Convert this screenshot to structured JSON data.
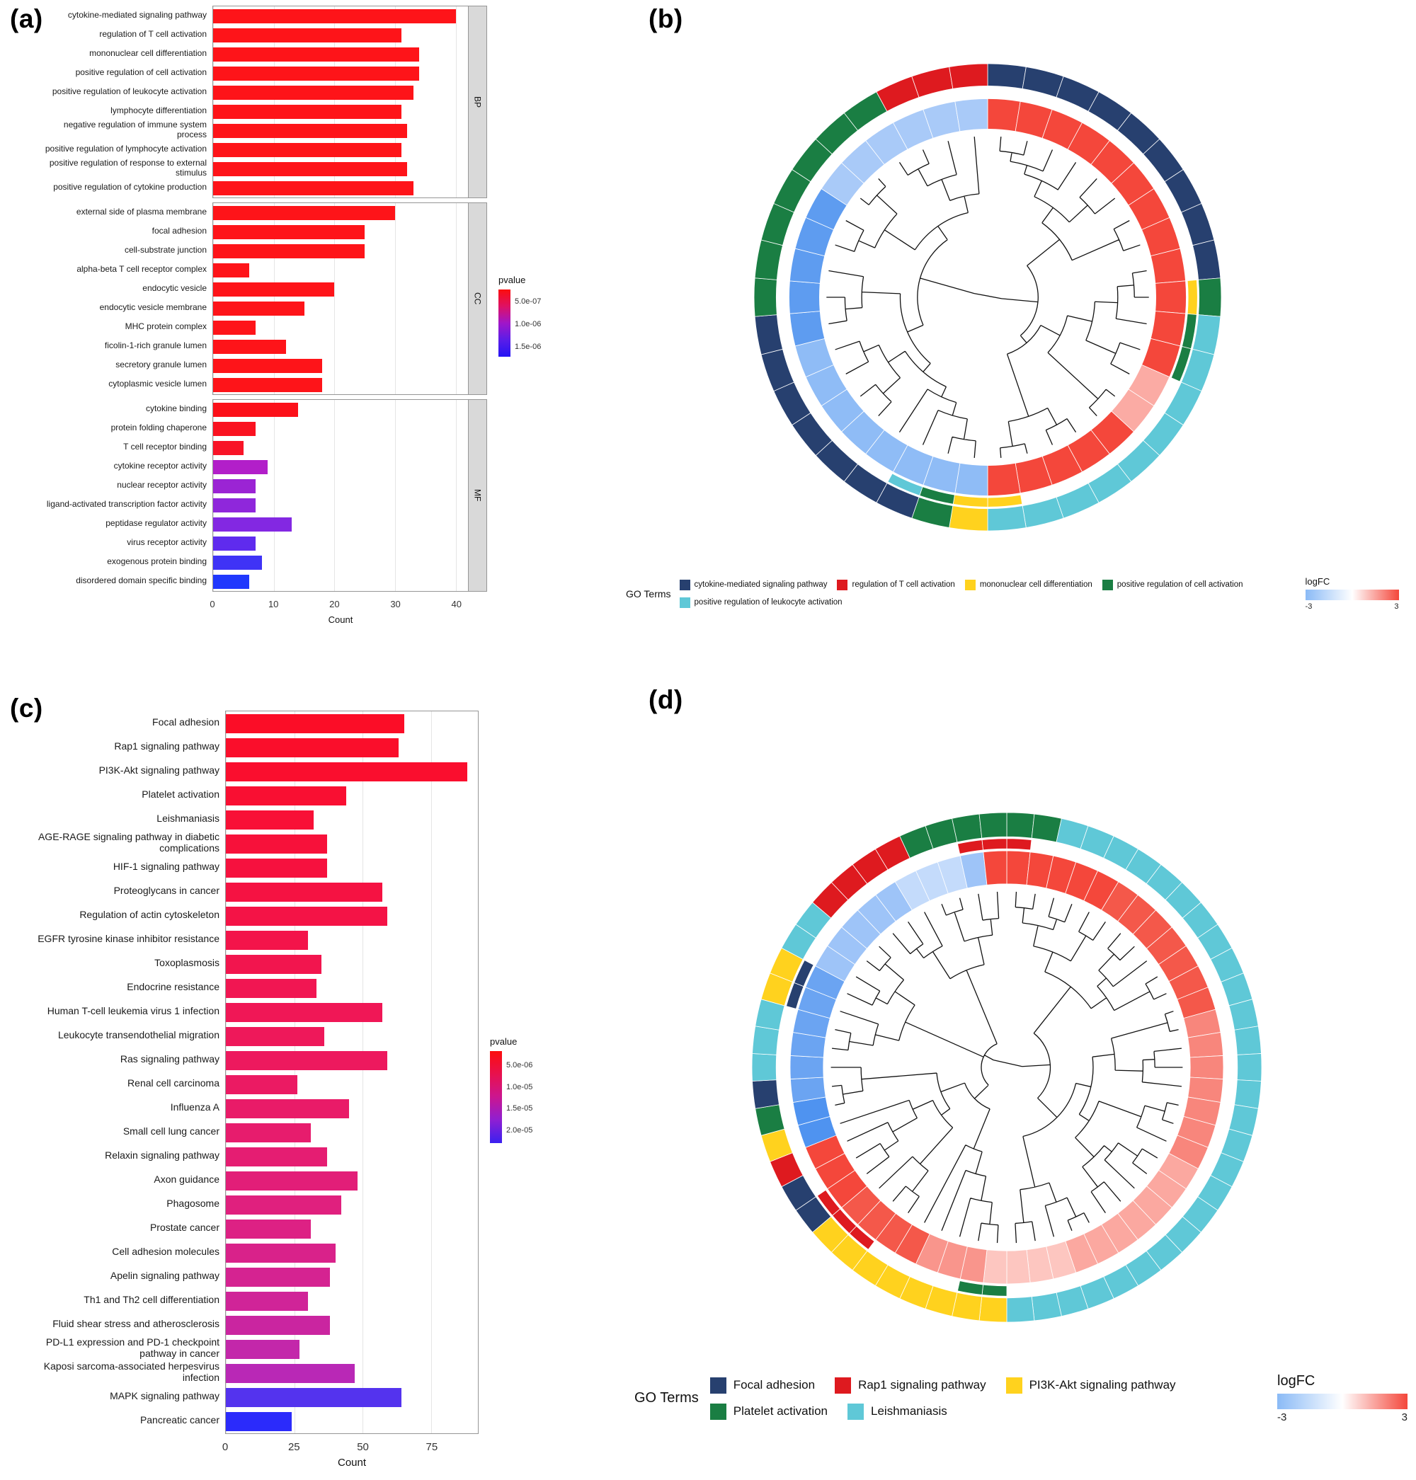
{
  "figure": {
    "panel_a_label": "(a)",
    "panel_b_label": "(b)",
    "panel_c_label": "(c)",
    "panel_d_label": "(d)"
  },
  "chart_data": [
    {
      "id": "a",
      "type": "bar",
      "orientation": "horizontal",
      "xlabel": "Count",
      "x_ticks": [
        0,
        10,
        20,
        30,
        40
      ],
      "xmax": 42,
      "legend": {
        "title": "pvalue",
        "gradient": [
          "#FC0D0D",
          "#DE1164",
          "#A016C8",
          "#5A1DE8",
          "#2414F4"
        ],
        "ticks": [
          {
            "label": "5.0e-07",
            "pos": 0.18
          },
          {
            "label": "1.0e-06",
            "pos": 0.52
          },
          {
            "label": "1.5e-06",
            "pos": 0.86
          }
        ]
      },
      "facets": [
        {
          "name": "BP",
          "bars": [
            {
              "label": "cytokine-mediated signaling pathway",
              "value": 40,
              "color": "#FE1419"
            },
            {
              "label": "regulation of T cell activation",
              "value": 31,
              "color": "#FE1419"
            },
            {
              "label": "mononuclear cell differentiation",
              "value": 34,
              "color": "#FE1419"
            },
            {
              "label": "positive regulation of cell activation",
              "value": 34,
              "color": "#FE1419"
            },
            {
              "label": "positive regulation of leukocyte activation",
              "value": 33,
              "color": "#FE1419"
            },
            {
              "label": "lymphocyte differentiation",
              "value": 31,
              "color": "#FE1419"
            },
            {
              "label": "negative regulation of immune system process",
              "value": 32,
              "color": "#FE1419"
            },
            {
              "label": "positive regulation of lymphocyte activation",
              "value": 31,
              "color": "#FE1419"
            },
            {
              "label": "positive regulation of response to external stimulus",
              "value": 32,
              "color": "#FE1419"
            },
            {
              "label": "positive regulation of cytokine production",
              "value": 33,
              "color": "#FE1419"
            }
          ]
        },
        {
          "name": "CC",
          "bars": [
            {
              "label": "external side of plasma membrane",
              "value": 30,
              "color": "#FE1419"
            },
            {
              "label": "focal adhesion",
              "value": 25,
              "color": "#FE1419"
            },
            {
              "label": "cell-substrate junction",
              "value": 25,
              "color": "#FE1419"
            },
            {
              "label": "alpha-beta T cell receptor complex",
              "value": 6,
              "color": "#FE1419"
            },
            {
              "label": "endocytic vesicle",
              "value": 20,
              "color": "#FE1419"
            },
            {
              "label": "endocytic vesicle membrane",
              "value": 15,
              "color": "#FE1419"
            },
            {
              "label": "MHC protein complex",
              "value": 7,
              "color": "#FE1419"
            },
            {
              "label": "ficolin-1-rich granule lumen",
              "value": 12,
              "color": "#FE1419"
            },
            {
              "label": "secretory granule lumen",
              "value": 18,
              "color": "#FE1419"
            },
            {
              "label": "cytoplasmic vesicle lumen",
              "value": 18,
              "color": "#FE1419"
            }
          ]
        },
        {
          "name": "MF",
          "bars": [
            {
              "label": "cytokine binding",
              "value": 14,
              "color": "#FC1019"
            },
            {
              "label": "protein folding chaperone",
              "value": 7,
              "color": "#FA1220"
            },
            {
              "label": "T cell receptor binding",
              "value": 5,
              "color": "#F81427"
            },
            {
              "label": "cytokine receptor activity",
              "value": 9,
              "color": "#B21FC9"
            },
            {
              "label": "nuclear receptor activity",
              "value": 7,
              "color": "#9B24D4"
            },
            {
              "label": "ligand-activated transcription factor activity",
              "value": 7,
              "color": "#8F27DB"
            },
            {
              "label": "peptidase regulator activity",
              "value": 13,
              "color": "#8328E2"
            },
            {
              "label": "virus receptor activity",
              "value": 7,
              "color": "#5F2BEE"
            },
            {
              "label": "exogenous protein binding",
              "value": 8,
              "color": "#3F33F6"
            },
            {
              "label": "disordered domain specific binding",
              "value": 6,
              "color": "#2038FD"
            }
          ]
        }
      ]
    },
    {
      "id": "b",
      "type": "circular",
      "size": 730,
      "radius": 330,
      "n_genes": 38,
      "rings": {
        "outer": {
          "r0": 0.905,
          "r1": 1.0
        },
        "mid": {
          "r0": 0.858,
          "r1": 0.898
        },
        "logfc": {
          "r0": 0.72,
          "r1": 0.85
        },
        "dendro": 0.69
      },
      "outer_segments": [
        {
          "color": "#27406F",
          "a0": 0,
          "a1": 84
        },
        {
          "color": "#1A7E43",
          "a0": 84,
          "a1": 97
        },
        {
          "color": "#5FC8D7",
          "a0": 97,
          "a1": 177
        },
        {
          "color": "#FFD21E",
          "a0": 177,
          "a1": 186
        },
        {
          "color": "#1A7E43",
          "a0": 186,
          "a1": 197
        },
        {
          "color": "#27406F",
          "a0": 197,
          "a1": 263
        },
        {
          "color": "#1A7E43",
          "a0": 263,
          "a1": 329
        },
        {
          "color": "#DE1A1F",
          "a0": 329,
          "a1": 360
        }
      ],
      "mid_segments": [
        {
          "color": "#FFD21E",
          "a0": 82,
          "a1": 97
        },
        {
          "color": "#1A7E43",
          "a0": 97,
          "a1": 110
        },
        {
          "color": "#FFD21E",
          "a0": 171,
          "a1": 186
        },
        {
          "color": "#1A7E43",
          "a0": 186,
          "a1": 199
        },
        {
          "color": "#5FC8D7",
          "a0": 199,
          "a1": 212
        }
      ],
      "logfc_segments": [
        {
          "color": "#F4473B",
          "a0": 0,
          "a1": 117
        },
        {
          "color": "#FBABA4",
          "a0": 117,
          "a1": 131
        },
        {
          "color": "#F4473B",
          "a0": 131,
          "a1": 180
        },
        {
          "color": "#8FBCF6",
          "a0": 180,
          "a1": 252
        },
        {
          "color": "#5E9CF0",
          "a0": 252,
          "a1": 301
        },
        {
          "color": "#A9CAF8",
          "a0": 301,
          "a1": 360
        }
      ],
      "legend": {
        "title": "GO Terms",
        "items": [
          {
            "label": "cytokine-mediated signaling pathway",
            "color": "#27406F"
          },
          {
            "label": "regulation of T cell activation",
            "color": "#DE1A1F"
          },
          {
            "label": "mononuclear cell differentiation",
            "color": "#FFD21E"
          },
          {
            "label": "positive regulation of cell activation",
            "color": "#1A7E43"
          },
          {
            "label": "positive regulation of leukocyte activation",
            "color": "#5FC8D7"
          }
        ]
      },
      "logfc_legend": {
        "title": "logFC",
        "min": "-3",
        "max": "3",
        "colors": [
          "#8ABAF6",
          "#FFFFFF",
          "#F4473B"
        ]
      }
    },
    {
      "id": "c",
      "type": "bar",
      "orientation": "horizontal",
      "xlabel": "Count",
      "x_ticks": [
        0,
        25,
        50,
        75
      ],
      "xmax": 92,
      "legend": {
        "title": "pvalue",
        "gradient": [
          "#FC0D0D",
          "#E8114E",
          "#CB1690",
          "#8E1FD2",
          "#3A20F0"
        ],
        "ticks": [
          {
            "label": "5.0e-06",
            "pos": 0.15
          },
          {
            "label": "1.0e-05",
            "pos": 0.39
          },
          {
            "label": "1.5e-05",
            "pos": 0.62
          },
          {
            "label": "2.0e-05",
            "pos": 0.86
          }
        ]
      },
      "facets": [
        {
          "name": "",
          "bars": [
            {
              "label": "Focal adhesion",
              "value": 65,
              "color": "#FB0D27"
            },
            {
              "label": "Rap1 signaling pathway",
              "value": 63,
              "color": "#FA0E2B"
            },
            {
              "label": "PI3K-Akt signaling pathway",
              "value": 88,
              "color": "#FA0E2E"
            },
            {
              "label": "Platelet activation",
              "value": 44,
              "color": "#F90F32"
            },
            {
              "label": "Leishmaniasis",
              "value": 32,
              "color": "#F81036"
            },
            {
              "label": "AGE-RAGE signaling pathway in diabetic complications",
              "value": 37,
              "color": "#F7113A"
            },
            {
              "label": "HIF-1 signaling pathway",
              "value": 37,
              "color": "#F6113E"
            },
            {
              "label": "Proteoglycans in cancer",
              "value": 57,
              "color": "#F51242"
            },
            {
              "label": "Regulation of actin cytoskeleton",
              "value": 59,
              "color": "#F41346"
            },
            {
              "label": "EGFR tyrosine kinase inhibitor resistance",
              "value": 30,
              "color": "#F3144A"
            },
            {
              "label": "Toxoplasmosis",
              "value": 35,
              "color": "#F2154E"
            },
            {
              "label": "Endocrine resistance",
              "value": 33,
              "color": "#F11652"
            },
            {
              "label": "Human T-cell leukemia virus 1 infection",
              "value": 57,
              "color": "#F01756"
            },
            {
              "label": "Leukocyte transendothelial migration",
              "value": 36,
              "color": "#EE185A"
            },
            {
              "label": "Ras signaling pathway",
              "value": 59,
              "color": "#ED195E"
            },
            {
              "label": "Renal cell carcinoma",
              "value": 26,
              "color": "#EB1A63"
            },
            {
              "label": "Influenza A",
              "value": 45,
              "color": "#E91B68"
            },
            {
              "label": "Small cell lung cancer",
              "value": 31,
              "color": "#E71C6D"
            },
            {
              "label": "Relaxin signaling pathway",
              "value": 37,
              "color": "#E51D72"
            },
            {
              "label": "Axon guidance",
              "value": 48,
              "color": "#E21E78"
            },
            {
              "label": "Phagosome",
              "value": 42,
              "color": "#E0207E"
            },
            {
              "label": "Prostate cancer",
              "value": 31,
              "color": "#DD2184"
            },
            {
              "label": "Cell adhesion molecules",
              "value": 40,
              "color": "#D9228A"
            },
            {
              "label": "Apelin signaling pathway",
              "value": 38,
              "color": "#D52391"
            },
            {
              "label": "Th1 and Th2 cell differentiation",
              "value": 30,
              "color": "#D02498"
            },
            {
              "label": "Fluid shear stress and atherosclerosis",
              "value": 38,
              "color": "#CA25A0"
            },
            {
              "label": "PD-L1 expression and PD-1 checkpoint pathway in cancer",
              "value": 27,
              "color": "#C327AA"
            },
            {
              "label": "Kaposi sarcoma-associated herpesvirus infection",
              "value": 47,
              "color": "#B928B6"
            },
            {
              "label": "MAPK signaling pathway",
              "value": 64,
              "color": "#5433EE"
            },
            {
              "label": "Pancreatic cancer",
              "value": 24,
              "color": "#2B2BFB"
            }
          ]
        }
      ]
    },
    {
      "id": "d",
      "type": "circular",
      "size": 764,
      "radius": 360,
      "n_genes": 58,
      "rings": {
        "outer": {
          "r0": 0.905,
          "r1": 1.0
        },
        "mid": {
          "r0": 0.858,
          "r1": 0.898
        },
        "logfc": {
          "r0": 0.72,
          "r1": 0.85
        },
        "dendro": 0.69
      },
      "outer_segments": [
        {
          "color": "#1A7E43",
          "a0": -23,
          "a1": 15
        },
        {
          "color": "#5FC8D7",
          "a0": 15,
          "a1": 177
        },
        {
          "color": "#FFD21E",
          "a0": 177,
          "a1": 232
        },
        {
          "color": "#27406F",
          "a0": 232,
          "a1": 240
        },
        {
          "color": "#DE1A1F",
          "a0": 240,
          "a1": 246
        },
        {
          "color": "#FFD21E",
          "a0": 246,
          "a1": 252
        },
        {
          "color": "#1A7E43",
          "a0": 252,
          "a1": 258
        },
        {
          "color": "#27406F",
          "a0": 258,
          "a1": 266
        },
        {
          "color": "#5FC8D7",
          "a0": 266,
          "a1": 283
        },
        {
          "color": "#FFD21E",
          "a0": 283,
          "a1": 298
        },
        {
          "color": "#5FC8D7",
          "a0": 298,
          "a1": 311
        },
        {
          "color": "#DE1A1F",
          "a0": 311,
          "a1": 337
        }
      ],
      "mid_segments": [
        {
          "color": "#DE1A1F",
          "a0": 346,
          "a1": 366
        },
        {
          "color": "#27406F",
          "a0": 286,
          "a1": 297
        },
        {
          "color": "#DE1A1F",
          "a0": 220,
          "a1": 233
        },
        {
          "color": "#1A7E43",
          "a0": 177,
          "a1": 191
        }
      ],
      "logfc_segments": [
        {
          "color": "#F4473B",
          "a0": -8,
          "a1": 30
        },
        {
          "color": "#F4584A",
          "a0": 30,
          "a1": 75
        },
        {
          "color": "#F8867C",
          "a0": 75,
          "a1": 120
        },
        {
          "color": "#FBA8A0",
          "a0": 120,
          "a1": 160
        },
        {
          "color": "#FDC6C0",
          "a0": 160,
          "a1": 186
        },
        {
          "color": "#F9958C",
          "a0": 186,
          "a1": 207
        },
        {
          "color": "#F4584A",
          "a0": 207,
          "a1": 228
        },
        {
          "color": "#F4473B",
          "a0": 228,
          "a1": 248
        },
        {
          "color": "#4F93F0",
          "a0": 248,
          "a1": 263
        },
        {
          "color": "#6BA4F2",
          "a0": 263,
          "a1": 300
        },
        {
          "color": "#9EC4F8",
          "a0": 300,
          "a1": 330
        },
        {
          "color": "#C4DBFB",
          "a0": 330,
          "a1": 345
        },
        {
          "color": "#9EC4F8",
          "a0": 345,
          "a1": 352
        }
      ],
      "legend": {
        "title": "GO Terms",
        "items": [
          {
            "label": "Focal adhesion",
            "color": "#27406F"
          },
          {
            "label": "Rap1 signaling pathway",
            "color": "#DE1A1F"
          },
          {
            "label": "PI3K-Akt signaling pathway",
            "color": "#FFD21E"
          },
          {
            "label": "Platelet activation",
            "color": "#1A7E43"
          },
          {
            "label": "Leishmaniasis",
            "color": "#5FC8D7"
          }
        ]
      },
      "logfc_legend": {
        "title": "logFC",
        "min": "-3",
        "max": "3",
        "colors": [
          "#8ABAF6",
          "#FFFFFF",
          "#F4473B"
        ]
      }
    }
  ]
}
